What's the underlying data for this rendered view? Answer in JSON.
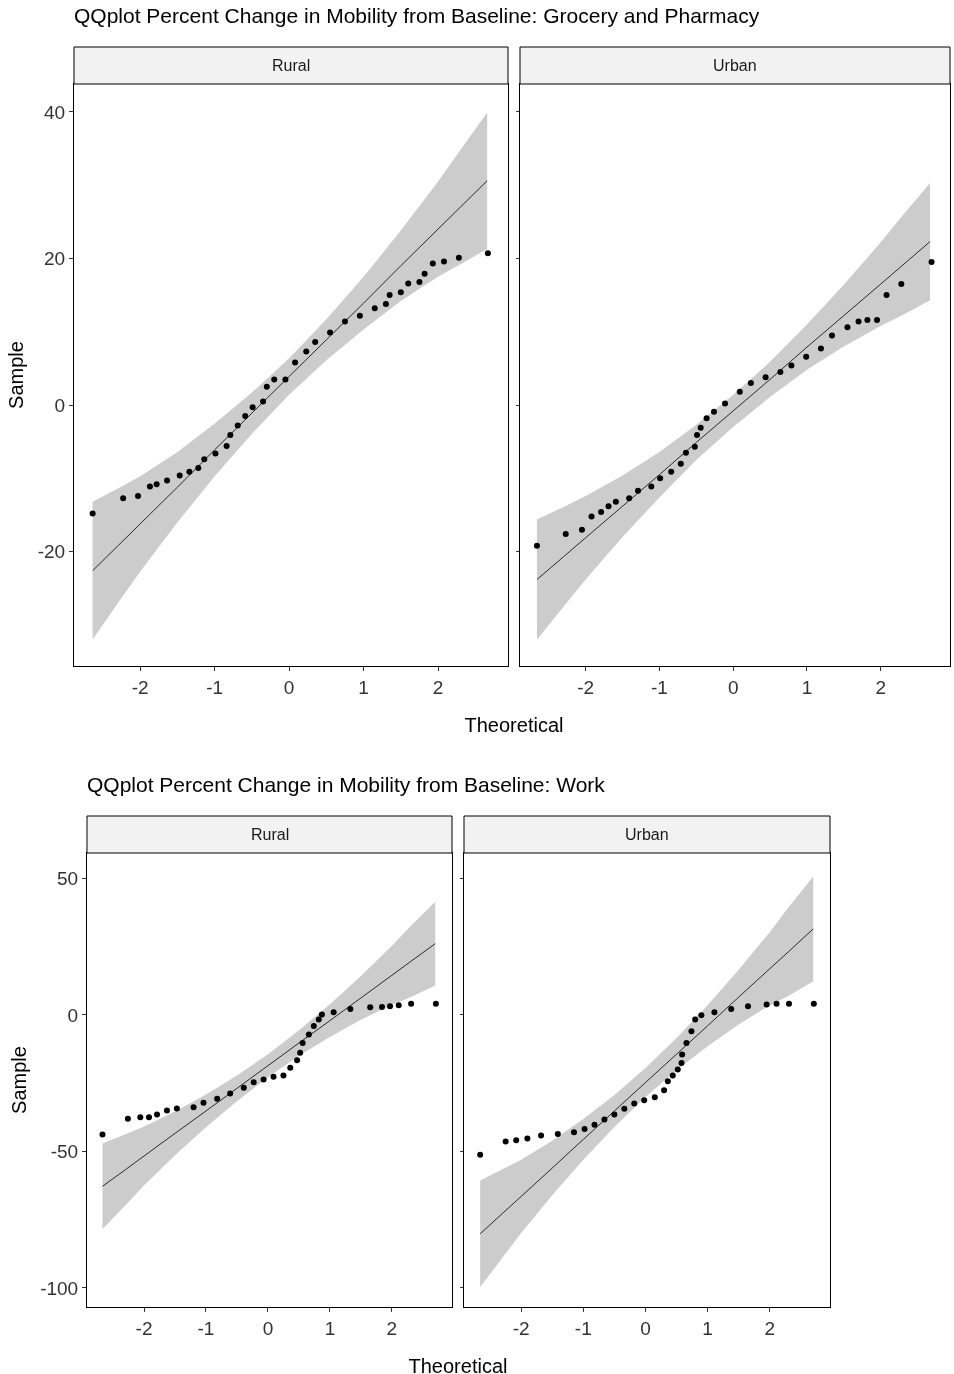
{
  "chart_data": [
    {
      "type": "scatter",
      "title": "QQplot Percent Change in Mobility from Baseline: Grocery and Pharmacy",
      "subtitle": "Rural",
      "xlabel": "Theoretical",
      "ylabel": "Sample",
      "xlim": [
        -2.89,
        2.94
      ],
      "xticks": [
        -2,
        -1,
        0,
        1,
        2
      ],
      "ylim": [
        -35.6,
        43.8
      ],
      "yticks": [
        -20,
        0,
        20,
        40
      ],
      "grid": false,
      "line_style": "solid",
      "series": [
        {
          "color": "#000000",
          "marker": "circle",
          "x": [
            -2.64,
            -2.23,
            -2.03,
            -1.87,
            -1.78,
            -1.64,
            -1.47,
            -1.34,
            -1.22,
            -1.14,
            -0.99,
            -0.84,
            -0.79,
            -0.69,
            -0.59,
            -0.49,
            -0.35,
            -0.3,
            -0.2,
            -0.05,
            0.08,
            0.23,
            0.35,
            0.55,
            0.75,
            0.95,
            1.15,
            1.3,
            1.35,
            1.5,
            1.6,
            1.75,
            1.82,
            1.93,
            2.08,
            2.28,
            2.67
          ],
          "values": [
            -14.8,
            -12.7,
            -12.4,
            -11.1,
            -10.8,
            -10.3,
            -9.6,
            -9.1,
            -8.6,
            -7.4,
            -6.6,
            -5.6,
            -4.1,
            -2.8,
            -1.5,
            -0.3,
            0.5,
            2.5,
            3.5,
            3.5,
            5.8,
            7.3,
            8.6,
            9.9,
            11.4,
            12.2,
            13.2,
            13.8,
            15.0,
            15.4,
            16.6,
            16.8,
            17.9,
            19.3,
            19.6,
            20.1,
            20.7
          ]
        },
        {
          "type": "line",
          "color": "#000000",
          "x": [
            -2.64,
            -2.3,
            -2,
            -1.5,
            -1,
            -0.5,
            0,
            0.5,
            1,
            1.5,
            2,
            2.3,
            2.66
          ],
          "values": [
            -22.6,
            -19.2,
            -16.2,
            -11.2,
            -6.1,
            -1.1,
            3.9,
            8.9,
            13.9,
            19.0,
            24.0,
            27.0,
            30.6
          ],
          "lower": [
            -32.0,
            -27.0,
            -22.7,
            -16.0,
            -9.7,
            -3.9,
            1.4,
            6.1,
            10.3,
            14.2,
            17.5,
            19.2,
            21.3
          ],
          "upper": [
            -13.2,
            -11.4,
            -9.7,
            -6.4,
            -2.5,
            1.7,
            6.4,
            11.7,
            17.5,
            23.8,
            30.5,
            34.8,
            39.9
          ]
        }
      ]
    },
    {
      "type": "scatter",
      "subtitle": "Urban",
      "xlim": [
        -2.89,
        2.94
      ],
      "xticks": [
        -2,
        -1,
        0,
        1,
        2
      ],
      "ylim": [
        -35.6,
        43.8
      ],
      "yticks": [
        -20,
        0,
        20,
        40
      ],
      "tick_labels": "x",
      "grid": false,
      "line_style": "solid",
      "series": [
        {
          "color": "#000000",
          "marker": "circle",
          "x": [
            -2.66,
            -2.27,
            -2.05,
            -1.92,
            -1.79,
            -1.69,
            -1.59,
            -1.41,
            -1.29,
            -1.11,
            -0.99,
            -0.84,
            -0.71,
            -0.64,
            -0.52,
            -0.49,
            -0.44,
            -0.36,
            -0.26,
            -0.11,
            0.09,
            0.24,
            0.44,
            0.64,
            0.79,
            0.99,
            1.19,
            1.34,
            1.55,
            1.7,
            1.82,
            1.95,
            2.08,
            2.28,
            2.69
          ],
          "values": [
            -19.2,
            -17.6,
            -17.0,
            -15.2,
            -14.6,
            -13.8,
            -13.2,
            -12.7,
            -11.7,
            -11.1,
            -10.0,
            -9.1,
            -8.0,
            -6.5,
            -5.7,
            -4.1,
            -3.1,
            -1.8,
            -0.9,
            0.2,
            1.8,
            3.0,
            3.8,
            4.5,
            5.4,
            6.6,
            7.7,
            9.5,
            10.6,
            11.4,
            11.6,
            11.6,
            15.0,
            16.5,
            19.5
          ]
        },
        {
          "type": "line",
          "color": "#000000",
          "x": [
            -2.66,
            -2.3,
            -2,
            -1.5,
            -1,
            -0.5,
            0,
            0.5,
            1,
            1.5,
            2,
            2.3,
            2.67
          ],
          "values": [
            -23.8,
            -20.7,
            -18.1,
            -13.8,
            -9.5,
            -5.1,
            -0.8,
            3.5,
            7.9,
            12.2,
            16.5,
            19.1,
            22.3
          ],
          "lower": [
            -32.0,
            -27.5,
            -23.8,
            -18.0,
            -12.6,
            -7.5,
            -3.0,
            1.1,
            4.8,
            8.0,
            10.8,
            12.3,
            14.3
          ],
          "upper": [
            -15.6,
            -13.9,
            -12.4,
            -9.6,
            -6.4,
            -2.7,
            1.4,
            5.9,
            11.0,
            16.4,
            22.2,
            25.9,
            30.3
          ]
        }
      ]
    },
    {
      "type": "scatter",
      "title": "QQplot Percent Change in Mobility from Baseline: Work",
      "subtitle": "Rural",
      "xlabel": "Theoretical",
      "ylabel": "Sample",
      "xlim": [
        -2.92,
        2.97
      ],
      "xticks": [
        -2,
        -1,
        0,
        1,
        2
      ],
      "ylim": [
        -107,
        59.3
      ],
      "yticks": [
        -100,
        -50,
        0,
        50
      ],
      "grid": false,
      "line_style": "solid",
      "series": [
        {
          "color": "#000000",
          "marker": "circle",
          "x": [
            -2.67,
            -2.26,
            -2.06,
            -1.92,
            -1.79,
            -1.63,
            -1.47,
            -1.2,
            -1.04,
            -0.82,
            -0.61,
            -0.39,
            -0.23,
            -0.07,
            0.09,
            0.25,
            0.36,
            0.47,
            0.52,
            0.56,
            0.66,
            0.74,
            0.82,
            0.87,
            1.06,
            1.33,
            1.65,
            1.84,
            1.97,
            2.11,
            2.31,
            2.71
          ],
          "values": [
            -43.8,
            -38.0,
            -37.5,
            -37.5,
            -36.5,
            -35.0,
            -34.3,
            -33.8,
            -32.2,
            -30.7,
            -28.8,
            -26.7,
            -24.7,
            -23.7,
            -22.7,
            -22.2,
            -19.4,
            -16.6,
            -13.9,
            -10.3,
            -7.2,
            -4.1,
            -1.7,
            0.1,
            1.0,
            2.2,
            2.8,
            2.9,
            3.2,
            3.5,
            4.1,
            4.1
          ]
        },
        {
          "type": "line",
          "color": "#000000",
          "x": [
            -2.67,
            -2.3,
            -2,
            -1.5,
            -1,
            -0.5,
            0,
            0.5,
            1,
            1.5,
            2,
            2.3,
            2.7
          ],
          "values": [
            -62.8,
            -56.7,
            -51.7,
            -43.4,
            -35.2,
            -26.9,
            -18.6,
            -10.3,
            -2.1,
            6.2,
            14.5,
            19.5,
            26.1
          ],
          "lower": [
            -78.5,
            -69.7,
            -62.5,
            -51.4,
            -41.2,
            -31.6,
            -22.8,
            -15.0,
            -8.1,
            -1.8,
            3.7,
            6.5,
            10.8
          ],
          "upper": [
            -47.1,
            -43.7,
            -40.9,
            -35.4,
            -29.2,
            -22.2,
            -14.4,
            -5.6,
            3.9,
            14.2,
            25.3,
            32.5,
            41.4
          ]
        }
      ]
    },
    {
      "type": "scatter",
      "subtitle": "Urban",
      "xlim": [
        -2.92,
        2.97
      ],
      "xticks": [
        -2,
        -1,
        0,
        1,
        2
      ],
      "ylim": [
        -107,
        59.3
      ],
      "yticks": [
        -100,
        -50,
        0,
        50
      ],
      "tick_labels": "x",
      "grid": false,
      "line_style": "solid",
      "series": [
        {
          "color": "#000000",
          "marker": "circle",
          "x": [
            -2.66,
            -2.25,
            -2.08,
            -1.9,
            -1.68,
            -1.41,
            -1.15,
            -0.98,
            -0.82,
            -0.66,
            -0.5,
            -0.34,
            -0.18,
            -0.02,
            0.15,
            0.3,
            0.36,
            0.44,
            0.52,
            0.58,
            0.59,
            0.66,
            0.74,
            0.8,
            0.9,
            1.11,
            1.38,
            1.65,
            1.95,
            2.11,
            2.31,
            2.71
          ],
          "values": [
            -51.2,
            -46.4,
            -45.9,
            -45.3,
            -44.2,
            -43.6,
            -43.0,
            -41.8,
            -40.2,
            -38.3,
            -36.5,
            -34.4,
            -32.5,
            -31.3,
            -30.2,
            -27.6,
            -24.3,
            -22.2,
            -20.0,
            -17.6,
            -14.5,
            -10.3,
            -6.0,
            -1.7,
            -0.1,
            1.0,
            2.2,
            3.2,
            3.8,
            4.1,
            4.1,
            4.1
          ]
        },
        {
          "type": "line",
          "color": "#000000",
          "x": [
            -2.66,
            -2.3,
            -2,
            -1.5,
            -1,
            -0.5,
            0,
            0.5,
            1,
            1.5,
            2,
            2.3,
            2.7
          ],
          "values": [
            -80.2,
            -72.7,
            -66.5,
            -56.1,
            -45.6,
            -35.2,
            -24.8,
            -14.4,
            -4.0,
            6.5,
            16.9,
            23.1,
            31.5
          ],
          "lower": [
            -99.7,
            -88.9,
            -79.9,
            -66.1,
            -53.1,
            -41.1,
            -30.1,
            -20.3,
            -11.5,
            -3.5,
            3.5,
            6.9,
            12.3
          ],
          "upper": [
            -60.7,
            -56.5,
            -53.1,
            -46.1,
            -38.1,
            -29.3,
            -19.5,
            -8.5,
            3.5,
            16.5,
            30.3,
            39.3,
            50.7
          ]
        }
      ]
    }
  ]
}
